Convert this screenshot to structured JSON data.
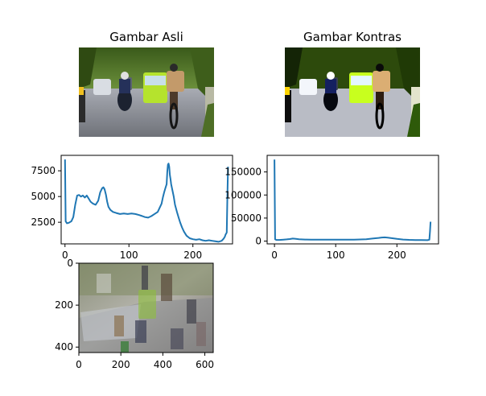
{
  "chart_data": [
    {
      "id": "photo_original",
      "type": "image",
      "title": "Gambar Asli",
      "image_description_tags": [
        "road-scene",
        "cyclists",
        "motorbikes",
        "green-minibus"
      ]
    },
    {
      "id": "photo_contrast",
      "type": "image",
      "title": "Gambar Kontras",
      "image_description_tags": [
        "road-scene",
        "cyclists",
        "motorbikes",
        "green-minibus",
        "high-contrast"
      ]
    },
    {
      "id": "hist_original",
      "type": "line",
      "title": "",
      "xlabel": "",
      "ylabel": "",
      "xlim": [
        -6,
        262
      ],
      "ylim": [
        400,
        9000
      ],
      "xticks": [
        0,
        100,
        200
      ],
      "xtick_labels": [
        "0",
        "100",
        "200"
      ],
      "yticks": [
        2500,
        5000,
        7500
      ],
      "ytick_labels": [
        "2500",
        "5000",
        "7500"
      ],
      "series": [
        {
          "name": "histogram",
          "color": "#1f77b4",
          "x": [
            0,
            1,
            3,
            6,
            10,
            13,
            16,
            19,
            22,
            25,
            28,
            31,
            34,
            37,
            40,
            44,
            48,
            52,
            55,
            58,
            60,
            62,
            64,
            66,
            68,
            71,
            75,
            80,
            86,
            92,
            98,
            104,
            110,
            116,
            121,
            125,
            130,
            135,
            140,
            145,
            148,
            151,
            153,
            155,
            157,
            159,
            160,
            161,
            162,
            163,
            164,
            165,
            166,
            168,
            170,
            172,
            175,
            178,
            180,
            183,
            186,
            190,
            195,
            200,
            205,
            210,
            215,
            220,
            225,
            230,
            235,
            240,
            245,
            248,
            250,
            251,
            252,
            253,
            254,
            255
          ],
          "y": [
            8600,
            2600,
            2400,
            2450,
            2600,
            3000,
            4200,
            5100,
            5150,
            5000,
            5100,
            4900,
            5100,
            4800,
            4500,
            4300,
            4200,
            4600,
            5400,
            5800,
            5900,
            5700,
            5200,
            4500,
            4000,
            3700,
            3500,
            3400,
            3300,
            3350,
            3300,
            3350,
            3300,
            3200,
            3100,
            3000,
            2950,
            3100,
            3300,
            3500,
            3900,
            4300,
            4900,
            5400,
            5800,
            6200,
            7400,
            8100,
            8200,
            7900,
            7100,
            6700,
            6200,
            5600,
            5000,
            4200,
            3500,
            2900,
            2500,
            2000,
            1600,
            1200,
            950,
            850,
            800,
            850,
            750,
            700,
            750,
            700,
            650,
            600,
            700,
            900,
            1100,
            1300,
            1400,
            1500,
            5000,
            7900
          ]
        }
      ]
    },
    {
      "id": "hist_contrast",
      "type": "line",
      "title": "",
      "xlabel": "",
      "ylabel": "",
      "xlim": [
        -12,
        268
      ],
      "ylim": [
        -6000,
        186000
      ],
      "xticks": [
        0,
        100,
        200
      ],
      "xtick_labels": [
        "0",
        "100",
        "200"
      ],
      "yticks": [
        0,
        50000,
        100000,
        150000
      ],
      "ytick_labels": [
        "0",
        "50000",
        "100000",
        "150000"
      ],
      "series": [
        {
          "name": "histogram",
          "color": "#1f77b4",
          "x": [
            0,
            1,
            3,
            8,
            15,
            20,
            25,
            30,
            35,
            40,
            50,
            60,
            70,
            80,
            90,
            100,
            110,
            120,
            130,
            140,
            150,
            160,
            165,
            170,
            175,
            180,
            185,
            190,
            195,
            200,
            210,
            220,
            230,
            240,
            250,
            253,
            254,
            255
          ],
          "y": [
            177000,
            4000,
            2500,
            2600,
            3200,
            3800,
            4500,
            5500,
            5000,
            4200,
            3500,
            3300,
            3200,
            3300,
            3200,
            3100,
            3100,
            3200,
            3300,
            3600,
            4200,
            5500,
            6200,
            7000,
            7800,
            8200,
            7600,
            6800,
            5800,
            4800,
            3500,
            2800,
            2400,
            2200,
            2000,
            3000,
            21000,
            42000
          ]
        }
      ]
    },
    {
      "id": "photo_flipped_axes",
      "type": "image",
      "title": "",
      "xlim": [
        0,
        640
      ],
      "ylim": [
        426,
        0
      ],
      "xticks": [
        0,
        200,
        400,
        600
      ],
      "xtick_labels": [
        "0",
        "200",
        "400",
        "600"
      ],
      "yticks": [
        0,
        200,
        400
      ],
      "ytick_labels": [
        "0",
        "200",
        "400"
      ],
      "image_description_tags": [
        "road-scene",
        "rotated-overlay",
        "ghosted"
      ]
    }
  ]
}
